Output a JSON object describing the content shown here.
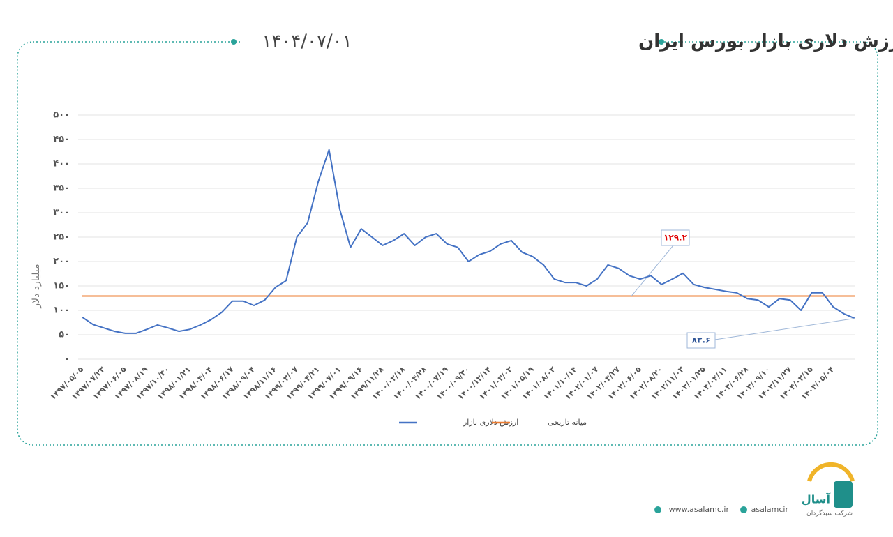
{
  "chart_data": {
    "type": "line",
    "title": "ارزش دلاری بازار بورس ایران",
    "subtitle": "۱۴۰۴/۰۷/۰۱",
    "y_label": "میلیارد دلار",
    "grid": true,
    "ylim": [
      0,
      500
    ],
    "yticks": [
      {
        "value": 0,
        "label": "۰"
      },
      {
        "value": 50,
        "label": "۵۰"
      },
      {
        "value": 100,
        "label": "۱۰۰"
      },
      {
        "value": 150,
        "label": "۱۵۰"
      },
      {
        "value": 200,
        "label": "۲۰۰"
      },
      {
        "value": 250,
        "label": "۲۵۰"
      },
      {
        "value": 300,
        "label": "۳۰۰"
      },
      {
        "value": 350,
        "label": "۳۵۰"
      },
      {
        "value": 400,
        "label": "۴۰۰"
      },
      {
        "value": 450,
        "label": "۴۵۰"
      },
      {
        "value": 500,
        "label": "۵۰۰"
      }
    ],
    "categories": [
      "۱۳۹۷/۰۵/۰۵",
      null,
      "۱۳۹۷/۰۷/۲۳",
      null,
      "۱۳۹۷/۰۶/۰۵",
      null,
      "۱۳۹۷/۰۸/۱۹",
      null,
      "۱۳۹۷/۱۰/۳۰",
      null,
      "۱۳۹۸/۰۱/۲۱",
      null,
      "۱۳۹۸/۰۴/۰۴",
      null,
      "۱۳۹۸/۰۶/۱۷",
      null,
      "۱۳۹۸/۰۹/۰۴",
      null,
      "۱۳۹۸/۱۱/۱۶",
      null,
      "۱۳۹۹/۰۲/۰۷",
      null,
      "۱۳۹۹/۰۴/۲۱",
      null,
      "۱۳۹۹/۰۷/۰۱",
      null,
      "۱۳۹۹/۰۹/۱۶",
      null,
      "۱۳۹۹/۱۱/۲۸",
      null,
      "۱۴۰۰/۰۲/۱۸",
      null,
      "۱۴۰۰/۰۴/۲۸",
      null,
      "۱۴۰۰/۰۷/۱۹",
      null,
      "۱۴۰۰/۰۹/۳۰",
      null,
      "۱۴۰۰/۱۲/۱۴",
      null,
      "۱۴۰۱/۰۳/۰۳",
      null,
      "۱۴۰۱/۰۵/۱۹",
      null,
      "۱۴۰۱/۰۸/۰۳",
      null,
      "۱۴۰۱/۱۰/۱۴",
      null,
      "۱۴۰۲/۰۱/۰۷",
      null,
      "۱۴۰۲/۰۳/۲۷",
      null,
      "۱۴۰۲/۰۶/۰۵",
      null,
      "۱۴۰۲/۰۸/۲۰",
      null,
      "۱۴۰۲/۱۱/۰۲",
      null,
      "۱۴۰۳/۰۱/۲۵",
      null,
      "۱۴۰۳/۰۴/۱۱",
      null,
      "۱۴۰۳/۰۶/۲۸",
      null,
      "۱۴۰۳/۰۹/۱۰",
      null,
      "۱۴۰۳/۱۱/۲۷",
      null,
      "۱۴۰۴/۰۲/۱۵",
      null,
      "۱۴۰۴/۰۵/۰۴",
      null,
      null
    ],
    "series": [
      {
        "name": "ارزش دلاری بازار",
        "color": "#4472c4",
        "values": [
          86,
          71,
          64,
          57,
          53,
          53,
          61,
          70,
          64,
          57,
          61,
          70,
          81,
          96,
          119,
          119,
          110,
          121,
          147,
          161,
          250,
          279,
          364,
          429,
          307,
          229,
          267,
          250,
          233,
          243,
          257,
          233,
          250,
          257,
          236,
          229,
          200,
          214,
          221,
          236,
          243,
          219,
          210,
          193,
          164,
          157,
          157,
          150,
          164,
          193,
          186,
          171,
          164,
          171,
          153,
          164,
          176,
          153,
          147,
          143,
          139,
          136,
          124,
          121,
          107,
          124,
          121,
          100,
          136,
          136,
          107,
          93,
          83.6
        ],
        "value_labels": [
          null,
          null,
          null,
          null,
          null,
          null,
          null,
          null,
          null,
          null,
          null,
          null,
          null,
          null,
          null,
          null,
          null,
          null,
          null,
          null,
          null,
          null,
          null,
          null,
          null,
          null,
          null,
          null,
          null,
          null,
          null,
          null,
          null,
          null,
          null,
          null,
          null,
          null,
          null,
          null,
          null,
          null,
          null,
          null,
          null,
          null,
          null,
          null,
          null,
          null,
          null,
          null,
          null,
          null,
          null,
          null,
          null,
          null,
          null,
          null,
          null,
          null,
          null,
          null,
          null,
          null,
          null,
          null,
          null,
          null,
          null,
          null,
          "۸۳.۶"
        ]
      }
    ],
    "reference": {
      "name": "میانه تاریخی",
      "color": "#ed7d31",
      "value": 129.2,
      "value_label": "۱۲۹.۲"
    }
  },
  "footer": {
    "website": "www.asalamc.ir",
    "telegram": "asalamcir",
    "brand": "آسال",
    "company": "شرکت سبدگردان"
  }
}
